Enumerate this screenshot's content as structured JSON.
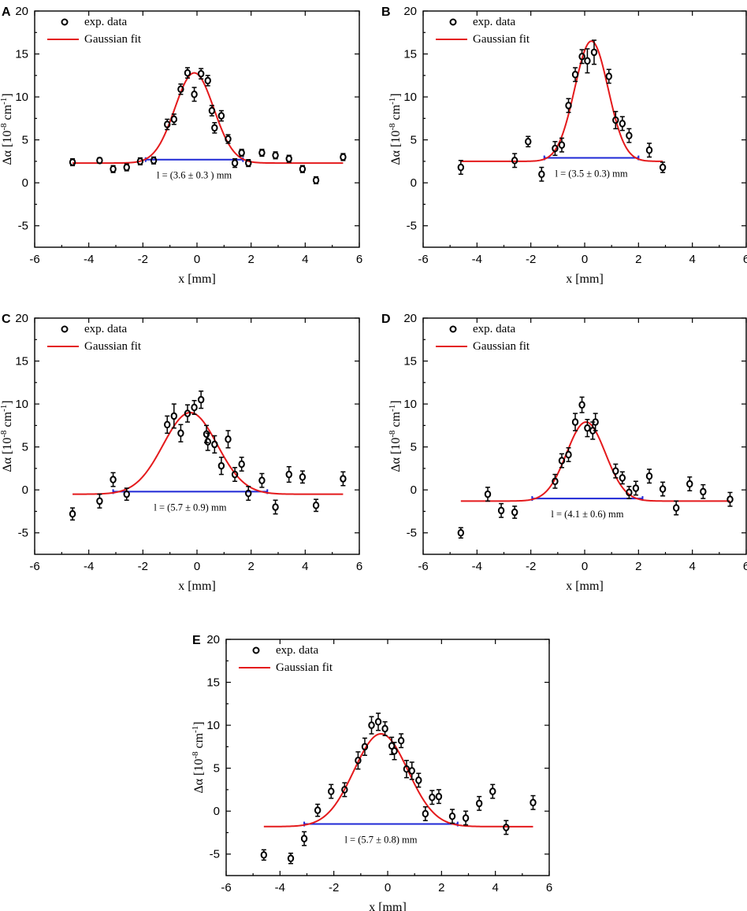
{
  "figure": {
    "legend": {
      "data_label": "exp. data",
      "fit_label": "Gaussian fit"
    },
    "xlabel": "x [mm]",
    "ylabel": "Δα [10",
    "ylabel_exp": "-8",
    "ylabel_unit": " cm",
    "ylabel_unit_exp": "-1",
    "ylabel_close": "]",
    "colors": {
      "fit": "#e41a1c",
      "fwhm": "#1f28d6",
      "data": "#000000"
    }
  },
  "chart_data": [
    {
      "panel": "A",
      "type": "scatter",
      "xlim": [
        -6,
        6
      ],
      "ylim": [
        -7.5,
        20
      ],
      "xticks": [
        -6,
        -4,
        -2,
        0,
        2,
        4,
        6
      ],
      "yticks": [
        -5,
        0,
        5,
        10,
        15,
        20
      ],
      "fit": {
        "baseline": 2.3,
        "amplitude": 10.5,
        "center": -0.1,
        "sigma": 0.72,
        "xrange": [
          -4.6,
          5.4
        ]
      },
      "fwhm": {
        "x1": -1.9,
        "x2": 1.7,
        "y": 2.7
      },
      "annotation": "l = (3.6 ± 0.3 ) mm",
      "points": [
        {
          "x": -4.6,
          "y": 2.4,
          "err": 0.4
        },
        {
          "x": -3.6,
          "y": 2.6,
          "err": 0.3
        },
        {
          "x": -3.1,
          "y": 1.6,
          "err": 0.4
        },
        {
          "x": -2.6,
          "y": 1.8,
          "err": 0.4
        },
        {
          "x": -2.1,
          "y": 2.5,
          "err": 0.4
        },
        {
          "x": -1.6,
          "y": 2.6,
          "err": 0.4
        },
        {
          "x": -1.1,
          "y": 6.8,
          "err": 0.6
        },
        {
          "x": -0.85,
          "y": 7.4,
          "err": 0.6
        },
        {
          "x": -0.6,
          "y": 10.9,
          "err": 0.6
        },
        {
          "x": -0.35,
          "y": 12.8,
          "err": 0.6
        },
        {
          "x": -0.1,
          "y": 10.3,
          "err": 0.8
        },
        {
          "x": 0.15,
          "y": 12.7,
          "err": 0.6
        },
        {
          "x": 0.4,
          "y": 11.9,
          "err": 0.6
        },
        {
          "x": 0.55,
          "y": 8.4,
          "err": 0.6
        },
        {
          "x": 0.65,
          "y": 6.4,
          "err": 0.6
        },
        {
          "x": 0.9,
          "y": 7.8,
          "err": 0.6
        },
        {
          "x": 1.15,
          "y": 5.1,
          "err": 0.5
        },
        {
          "x": 1.4,
          "y": 2.3,
          "err": 0.5
        },
        {
          "x": 1.65,
          "y": 3.5,
          "err": 0.4
        },
        {
          "x": 1.9,
          "y": 2.3,
          "err": 0.4
        },
        {
          "x": 2.4,
          "y": 3.5,
          "err": 0.4
        },
        {
          "x": 2.9,
          "y": 3.2,
          "err": 0.4
        },
        {
          "x": 3.4,
          "y": 2.8,
          "err": 0.4
        },
        {
          "x": 3.9,
          "y": 1.6,
          "err": 0.4
        },
        {
          "x": 4.4,
          "y": 0.3,
          "err": 0.4
        },
        {
          "x": 5.4,
          "y": 3.0,
          "err": 0.4
        }
      ]
    },
    {
      "panel": "B",
      "type": "scatter",
      "xlim": [
        -6,
        6
      ],
      "ylim": [
        -7.5,
        20
      ],
      "xticks": [
        -6,
        -4,
        -2,
        0,
        2,
        4,
        6
      ],
      "yticks": [
        -5,
        0,
        5,
        10,
        15,
        20
      ],
      "fit": {
        "baseline": 2.5,
        "amplitude": 14.0,
        "center": 0.25,
        "sigma": 0.62,
        "xrange": [
          -4.6,
          2.9
        ]
      },
      "fwhm": {
        "x1": -1.5,
        "x2": 2.0,
        "y": 2.9
      },
      "annotation": "l = (3.5 ± 0.3) mm",
      "points": [
        {
          "x": -4.6,
          "y": 1.8,
          "err": 0.8
        },
        {
          "x": -2.6,
          "y": 2.6,
          "err": 0.8
        },
        {
          "x": -2.1,
          "y": 4.8,
          "err": 0.6
        },
        {
          "x": -1.6,
          "y": 1.0,
          "err": 0.8
        },
        {
          "x": -1.1,
          "y": 4.0,
          "err": 0.8
        },
        {
          "x": -0.85,
          "y": 4.4,
          "err": 0.8
        },
        {
          "x": -0.6,
          "y": 9.0,
          "err": 0.8
        },
        {
          "x": -0.35,
          "y": 12.6,
          "err": 0.8
        },
        {
          "x": -0.1,
          "y": 14.7,
          "err": 0.8
        },
        {
          "x": 0.1,
          "y": 14.2,
          "err": 1.4
        },
        {
          "x": 0.35,
          "y": 15.2,
          "err": 1.4
        },
        {
          "x": 0.9,
          "y": 12.4,
          "err": 0.8
        },
        {
          "x": 1.15,
          "y": 7.3,
          "err": 1.0
        },
        {
          "x": 1.4,
          "y": 6.9,
          "err": 0.8
        },
        {
          "x": 1.65,
          "y": 5.5,
          "err": 0.8
        },
        {
          "x": 2.4,
          "y": 3.8,
          "err": 0.8
        },
        {
          "x": 2.9,
          "y": 1.8,
          "err": 0.6
        }
      ]
    },
    {
      "panel": "C",
      "type": "scatter",
      "xlim": [
        -6,
        6
      ],
      "ylim": [
        -7.5,
        20
      ],
      "xticks": [
        -6,
        -4,
        -2,
        0,
        2,
        4,
        6
      ],
      "yticks": [
        -5,
        0,
        5,
        10,
        15,
        20
      ],
      "fit": {
        "baseline": -0.5,
        "amplitude": 9.5,
        "center": -0.25,
        "sigma": 1.0,
        "xrange": [
          -4.6,
          5.4
        ]
      },
      "fwhm": {
        "x1": -3.1,
        "x2": 2.6,
        "y": -0.2
      },
      "annotation": "l = (5.7 ± 0.9) mm",
      "points": [
        {
          "x": -4.6,
          "y": -2.8,
          "err": 0.7
        },
        {
          "x": -3.6,
          "y": -1.3,
          "err": 0.8
        },
        {
          "x": -3.1,
          "y": 1.2,
          "err": 0.8
        },
        {
          "x": -2.6,
          "y": -0.5,
          "err": 0.7
        },
        {
          "x": -1.1,
          "y": 7.6,
          "err": 1.0
        },
        {
          "x": -0.85,
          "y": 8.6,
          "err": 1.4
        },
        {
          "x": -0.6,
          "y": 6.6,
          "err": 1.0
        },
        {
          "x": -0.35,
          "y": 8.9,
          "err": 1.0
        },
        {
          "x": -0.1,
          "y": 9.6,
          "err": 0.8
        },
        {
          "x": 0.15,
          "y": 10.5,
          "err": 1.0
        },
        {
          "x": 0.35,
          "y": 6.5,
          "err": 1.0
        },
        {
          "x": 0.4,
          "y": 5.6,
          "err": 1.0
        },
        {
          "x": 0.65,
          "y": 5.3,
          "err": 1.0
        },
        {
          "x": 0.9,
          "y": 2.8,
          "err": 1.0
        },
        {
          "x": 1.15,
          "y": 5.9,
          "err": 1.0
        },
        {
          "x": 1.4,
          "y": 1.8,
          "err": 0.8
        },
        {
          "x": 1.65,
          "y": 3.0,
          "err": 0.8
        },
        {
          "x": 1.9,
          "y": -0.4,
          "err": 0.8
        },
        {
          "x": 2.4,
          "y": 1.1,
          "err": 0.8
        },
        {
          "x": 2.9,
          "y": -2.0,
          "err": 0.8
        },
        {
          "x": 3.4,
          "y": 1.8,
          "err": 0.9
        },
        {
          "x": 3.9,
          "y": 1.5,
          "err": 0.7
        },
        {
          "x": 4.4,
          "y": -1.8,
          "err": 0.7
        },
        {
          "x": 5.4,
          "y": 1.3,
          "err": 0.8
        }
      ]
    },
    {
      "panel": "D",
      "type": "scatter",
      "xlim": [
        -6,
        6
      ],
      "ylim": [
        -7.5,
        20
      ],
      "xticks": [
        -6,
        -4,
        -2,
        0,
        2,
        4,
        6
      ],
      "yticks": [
        -5,
        0,
        5,
        10,
        15,
        20
      ],
      "fit": {
        "baseline": -1.3,
        "amplitude": 9.2,
        "center": 0.05,
        "sigma": 0.72,
        "xrange": [
          -4.6,
          5.4
        ]
      },
      "fwhm": {
        "x1": -1.95,
        "x2": 2.15,
        "y": -1.0
      },
      "annotation": "l = (4.1 ± 0.6) mm",
      "points": [
        {
          "x": -4.6,
          "y": -5.0,
          "err": 0.6
        },
        {
          "x": -3.6,
          "y": -0.5,
          "err": 0.8
        },
        {
          "x": -3.1,
          "y": -2.4,
          "err": 0.8
        },
        {
          "x": -2.6,
          "y": -2.6,
          "err": 0.7
        },
        {
          "x": -1.1,
          "y": 1.0,
          "err": 0.8
        },
        {
          "x": -0.85,
          "y": 3.4,
          "err": 0.8
        },
        {
          "x": -0.6,
          "y": 4.1,
          "err": 0.8
        },
        {
          "x": -0.35,
          "y": 7.9,
          "err": 1.0
        },
        {
          "x": -0.1,
          "y": 9.9,
          "err": 0.9
        },
        {
          "x": 0.1,
          "y": 7.2,
          "err": 1.0
        },
        {
          "x": 0.3,
          "y": 6.9,
          "err": 1.0
        },
        {
          "x": 0.4,
          "y": 7.9,
          "err": 1.0
        },
        {
          "x": 1.15,
          "y": 2.2,
          "err": 0.8
        },
        {
          "x": 1.4,
          "y": 1.4,
          "err": 0.7
        },
        {
          "x": 1.65,
          "y": -0.3,
          "err": 0.7
        },
        {
          "x": 1.9,
          "y": 0.2,
          "err": 0.8
        },
        {
          "x": 2.4,
          "y": 1.6,
          "err": 0.8
        },
        {
          "x": 2.9,
          "y": 0.1,
          "err": 0.8
        },
        {
          "x": 3.4,
          "y": -2.1,
          "err": 0.8
        },
        {
          "x": 3.9,
          "y": 0.7,
          "err": 0.8
        },
        {
          "x": 4.4,
          "y": -0.2,
          "err": 0.8
        },
        {
          "x": 5.4,
          "y": -1.1,
          "err": 0.8
        }
      ]
    },
    {
      "panel": "E",
      "type": "scatter",
      "xlim": [
        -6,
        6
      ],
      "ylim": [
        -7.5,
        20
      ],
      "xticks": [
        -6,
        -4,
        -2,
        0,
        2,
        4,
        6
      ],
      "yticks": [
        -5,
        0,
        5,
        10,
        15,
        20
      ],
      "fit": {
        "baseline": -1.8,
        "amplitude": 10.8,
        "center": -0.25,
        "sigma": 1.0,
        "xrange": [
          -4.6,
          5.4
        ]
      },
      "fwhm": {
        "x1": -3.1,
        "x2": 2.6,
        "y": -1.5
      },
      "annotation": "l = (5.7 ± 0.8) mm",
      "points": [
        {
          "x": -4.6,
          "y": -5.1,
          "err": 0.6
        },
        {
          "x": -3.6,
          "y": -5.5,
          "err": 0.6
        },
        {
          "x": -3.1,
          "y": -3.2,
          "err": 0.8
        },
        {
          "x": -2.6,
          "y": 0.1,
          "err": 0.7
        },
        {
          "x": -2.1,
          "y": 2.3,
          "err": 0.8
        },
        {
          "x": -1.6,
          "y": 2.5,
          "err": 0.8
        },
        {
          "x": -1.1,
          "y": 5.9,
          "err": 1.0
        },
        {
          "x": -0.85,
          "y": 7.5,
          "err": 1.0
        },
        {
          "x": -0.6,
          "y": 10.0,
          "err": 1.0
        },
        {
          "x": -0.35,
          "y": 10.4,
          "err": 1.0
        },
        {
          "x": -0.1,
          "y": 9.6,
          "err": 0.8
        },
        {
          "x": 0.15,
          "y": 7.6,
          "err": 1.0
        },
        {
          "x": 0.25,
          "y": 7.0,
          "err": 1.0
        },
        {
          "x": 0.5,
          "y": 8.2,
          "err": 0.8
        },
        {
          "x": 0.7,
          "y": 4.9,
          "err": 1.0
        },
        {
          "x": 0.9,
          "y": 4.7,
          "err": 1.0
        },
        {
          "x": 1.15,
          "y": 3.6,
          "err": 0.8
        },
        {
          "x": 1.4,
          "y": -0.3,
          "err": 0.8
        },
        {
          "x": 1.65,
          "y": 1.6,
          "err": 0.8
        },
        {
          "x": 1.9,
          "y": 1.7,
          "err": 0.8
        },
        {
          "x": 2.4,
          "y": -0.6,
          "err": 0.8
        },
        {
          "x": 2.9,
          "y": -0.8,
          "err": 0.8
        },
        {
          "x": 3.4,
          "y": 0.9,
          "err": 0.8
        },
        {
          "x": 3.9,
          "y": 2.3,
          "err": 0.8
        },
        {
          "x": 4.4,
          "y": -1.9,
          "err": 0.8
        },
        {
          "x": 5.4,
          "y": 1.0,
          "err": 0.8
        }
      ]
    }
  ]
}
